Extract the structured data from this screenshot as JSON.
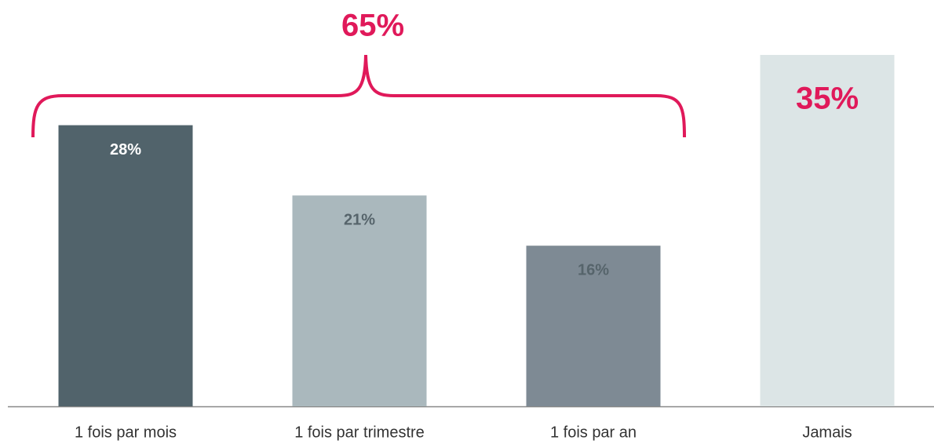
{
  "chart_data": {
    "type": "bar",
    "categories": [
      "1 fois par mois",
      "1 fois par trimestre",
      "1 fois par an",
      "Jamais"
    ],
    "values": [
      28,
      21,
      16,
      35
    ],
    "value_labels": [
      "28%",
      "21%",
      "16%",
      "35%"
    ],
    "colors": [
      "#51636b",
      "#aab8bd",
      "#7e8a94",
      "#dce5e6"
    ],
    "value_label_colors": [
      "#ffffff",
      "#56646b",
      "#56646b",
      "#e0195a"
    ],
    "annotation": "65%",
    "annotation_color": "#e0195a",
    "ylim": [
      0,
      40
    ]
  }
}
